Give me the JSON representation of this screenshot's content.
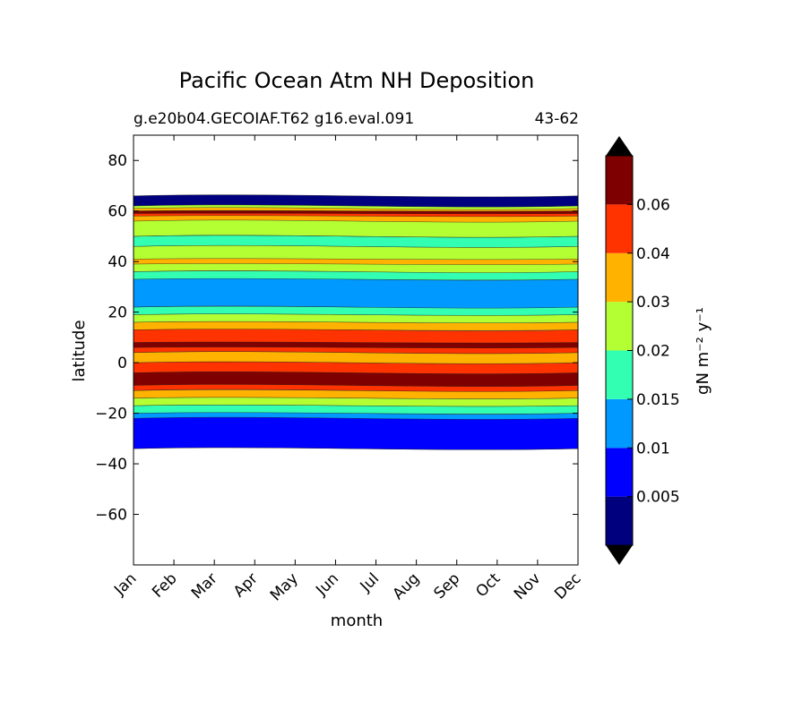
{
  "chart_data": {
    "type": "contour",
    "title": "Pacific Ocean Atm NH Deposition",
    "subtitle_left": "g.e20b04.GECOIAF.T62 g16.eval.091",
    "subtitle_right": "43-62",
    "xlabel": "month",
    "ylabel": "latitude",
    "x_categories": [
      "Jan",
      "Feb",
      "Mar",
      "Apr",
      "May",
      "Jun",
      "Jul",
      "Aug",
      "Sep",
      "Oct",
      "Nov",
      "Dec"
    ],
    "ylim": [
      -80,
      90
    ],
    "yticks": [
      80,
      60,
      40,
      20,
      0,
      -20,
      -40,
      -60
    ],
    "data_lat_range": [
      -34,
      67
    ],
    "colorbar": {
      "label": "gN m⁻² y⁻¹",
      "levels": [
        0,
        0.005,
        0.01,
        0.015,
        0.02,
        0.03,
        0.04,
        0.06,
        0.08
      ],
      "tick_labels": [
        "0.005",
        "0.01",
        "0.015",
        "0.02",
        "0.03",
        "0.04",
        "0.06"
      ],
      "colors": [
        "#00007f",
        "#0000ff",
        "#0099ff",
        "#33ffb3",
        "#b3ff33",
        "#ffb300",
        "#ff3300",
        "#7f0000"
      ],
      "extend": "both"
    },
    "bands": [
      {
        "level": 2,
        "lat": [
          -34,
          -20
        ]
      },
      {
        "level": 1,
        "lat": [
          -34,
          -22
        ]
      },
      {
        "level": 3,
        "lat": [
          -20,
          -17
        ]
      },
      {
        "level": 4,
        "lat": [
          -17,
          -14
        ]
      },
      {
        "level": 5,
        "lat": [
          -14,
          -11
        ]
      },
      {
        "level": 6,
        "lat": [
          -11,
          0
        ]
      },
      {
        "level": 7,
        "lat": [
          -9,
          -4
        ]
      },
      {
        "level": 5,
        "lat": [
          0,
          4
        ]
      },
      {
        "level": 6,
        "lat": [
          4,
          13
        ]
      },
      {
        "level": 7,
        "lat": [
          6,
          8
        ]
      },
      {
        "level": 5,
        "lat": [
          13,
          16
        ]
      },
      {
        "level": 4,
        "lat": [
          16,
          19
        ]
      },
      {
        "level": 3,
        "lat": [
          19,
          22
        ]
      },
      {
        "level": 2,
        "lat": [
          22,
          33
        ]
      },
      {
        "level": 3,
        "lat": [
          33,
          36
        ]
      },
      {
        "level": 4,
        "lat": [
          36,
          46
        ]
      },
      {
        "level": 5,
        "lat": [
          39,
          41
        ]
      },
      {
        "level": 3,
        "lat": [
          46,
          50
        ]
      },
      {
        "level": 2,
        "lat": [
          50,
          54
        ]
      },
      {
        "level": 1,
        "lat": [
          54,
          60
        ]
      },
      {
        "level": 0,
        "lat": [
          61,
          66
        ]
      },
      {
        "level": 4,
        "lat": [
          50,
          62
        ]
      },
      {
        "level": 5,
        "lat": [
          56,
          61
        ]
      },
      {
        "level": 6,
        "lat": [
          58,
          60
        ]
      },
      {
        "level": 7,
        "lat": [
          59,
          60
        ]
      }
    ]
  }
}
